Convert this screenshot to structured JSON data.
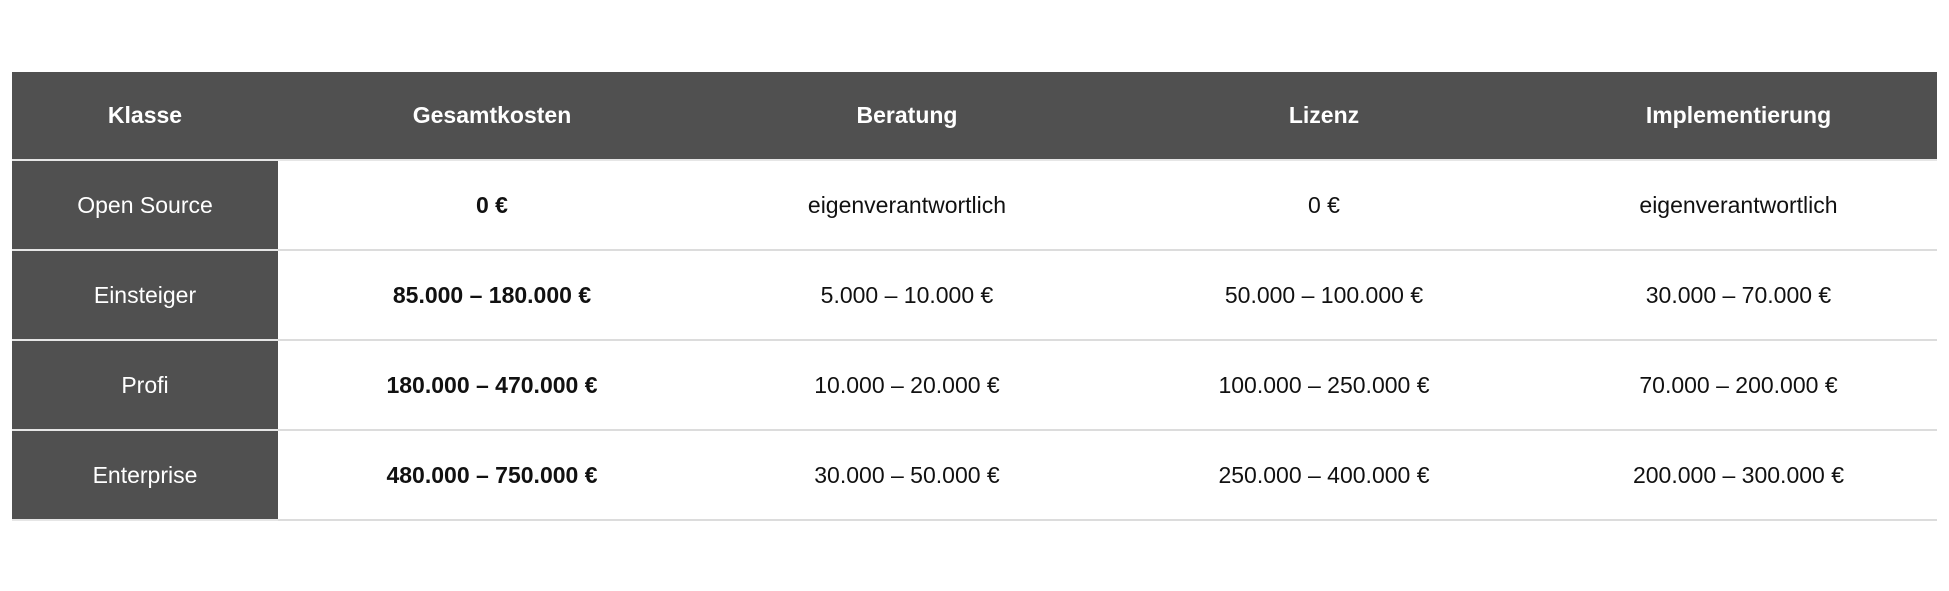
{
  "table": {
    "headers": [
      "Klasse",
      "Gesamtkosten",
      "Beratung",
      "Lizenz",
      "Implementierung"
    ],
    "rows": [
      {
        "klasse": "Open Source",
        "gesamtkosten": "0 €",
        "beratung": "eigenverantwortlich",
        "lizenz": "0 €",
        "implementierung": "eigenverantwortlich"
      },
      {
        "klasse": "Einsteiger",
        "gesamtkosten": "85.000 – 180.000 €",
        "beratung": "5.000 – 10.000 €",
        "lizenz": "50.000 – 100.000 €",
        "implementierung": "30.000 – 70.000 €"
      },
      {
        "klasse": "Profi",
        "gesamtkosten": "180.000 – 470.000 €",
        "beratung": "10.000 – 20.000 €",
        "lizenz": "100.000 – 250.000 €",
        "implementierung": "70.000 – 200.000 €"
      },
      {
        "klasse": "Enterprise",
        "gesamtkosten": "480.000 – 750.000 €",
        "beratung": "30.000 – 50.000 €",
        "lizenz": "250.000 – 400.000 €",
        "implementierung": "200.000 – 300.000 €"
      }
    ]
  },
  "colors": {
    "header_bg": "#505050",
    "header_text": "#ffffff",
    "row_divider": "#dcdcdc"
  }
}
